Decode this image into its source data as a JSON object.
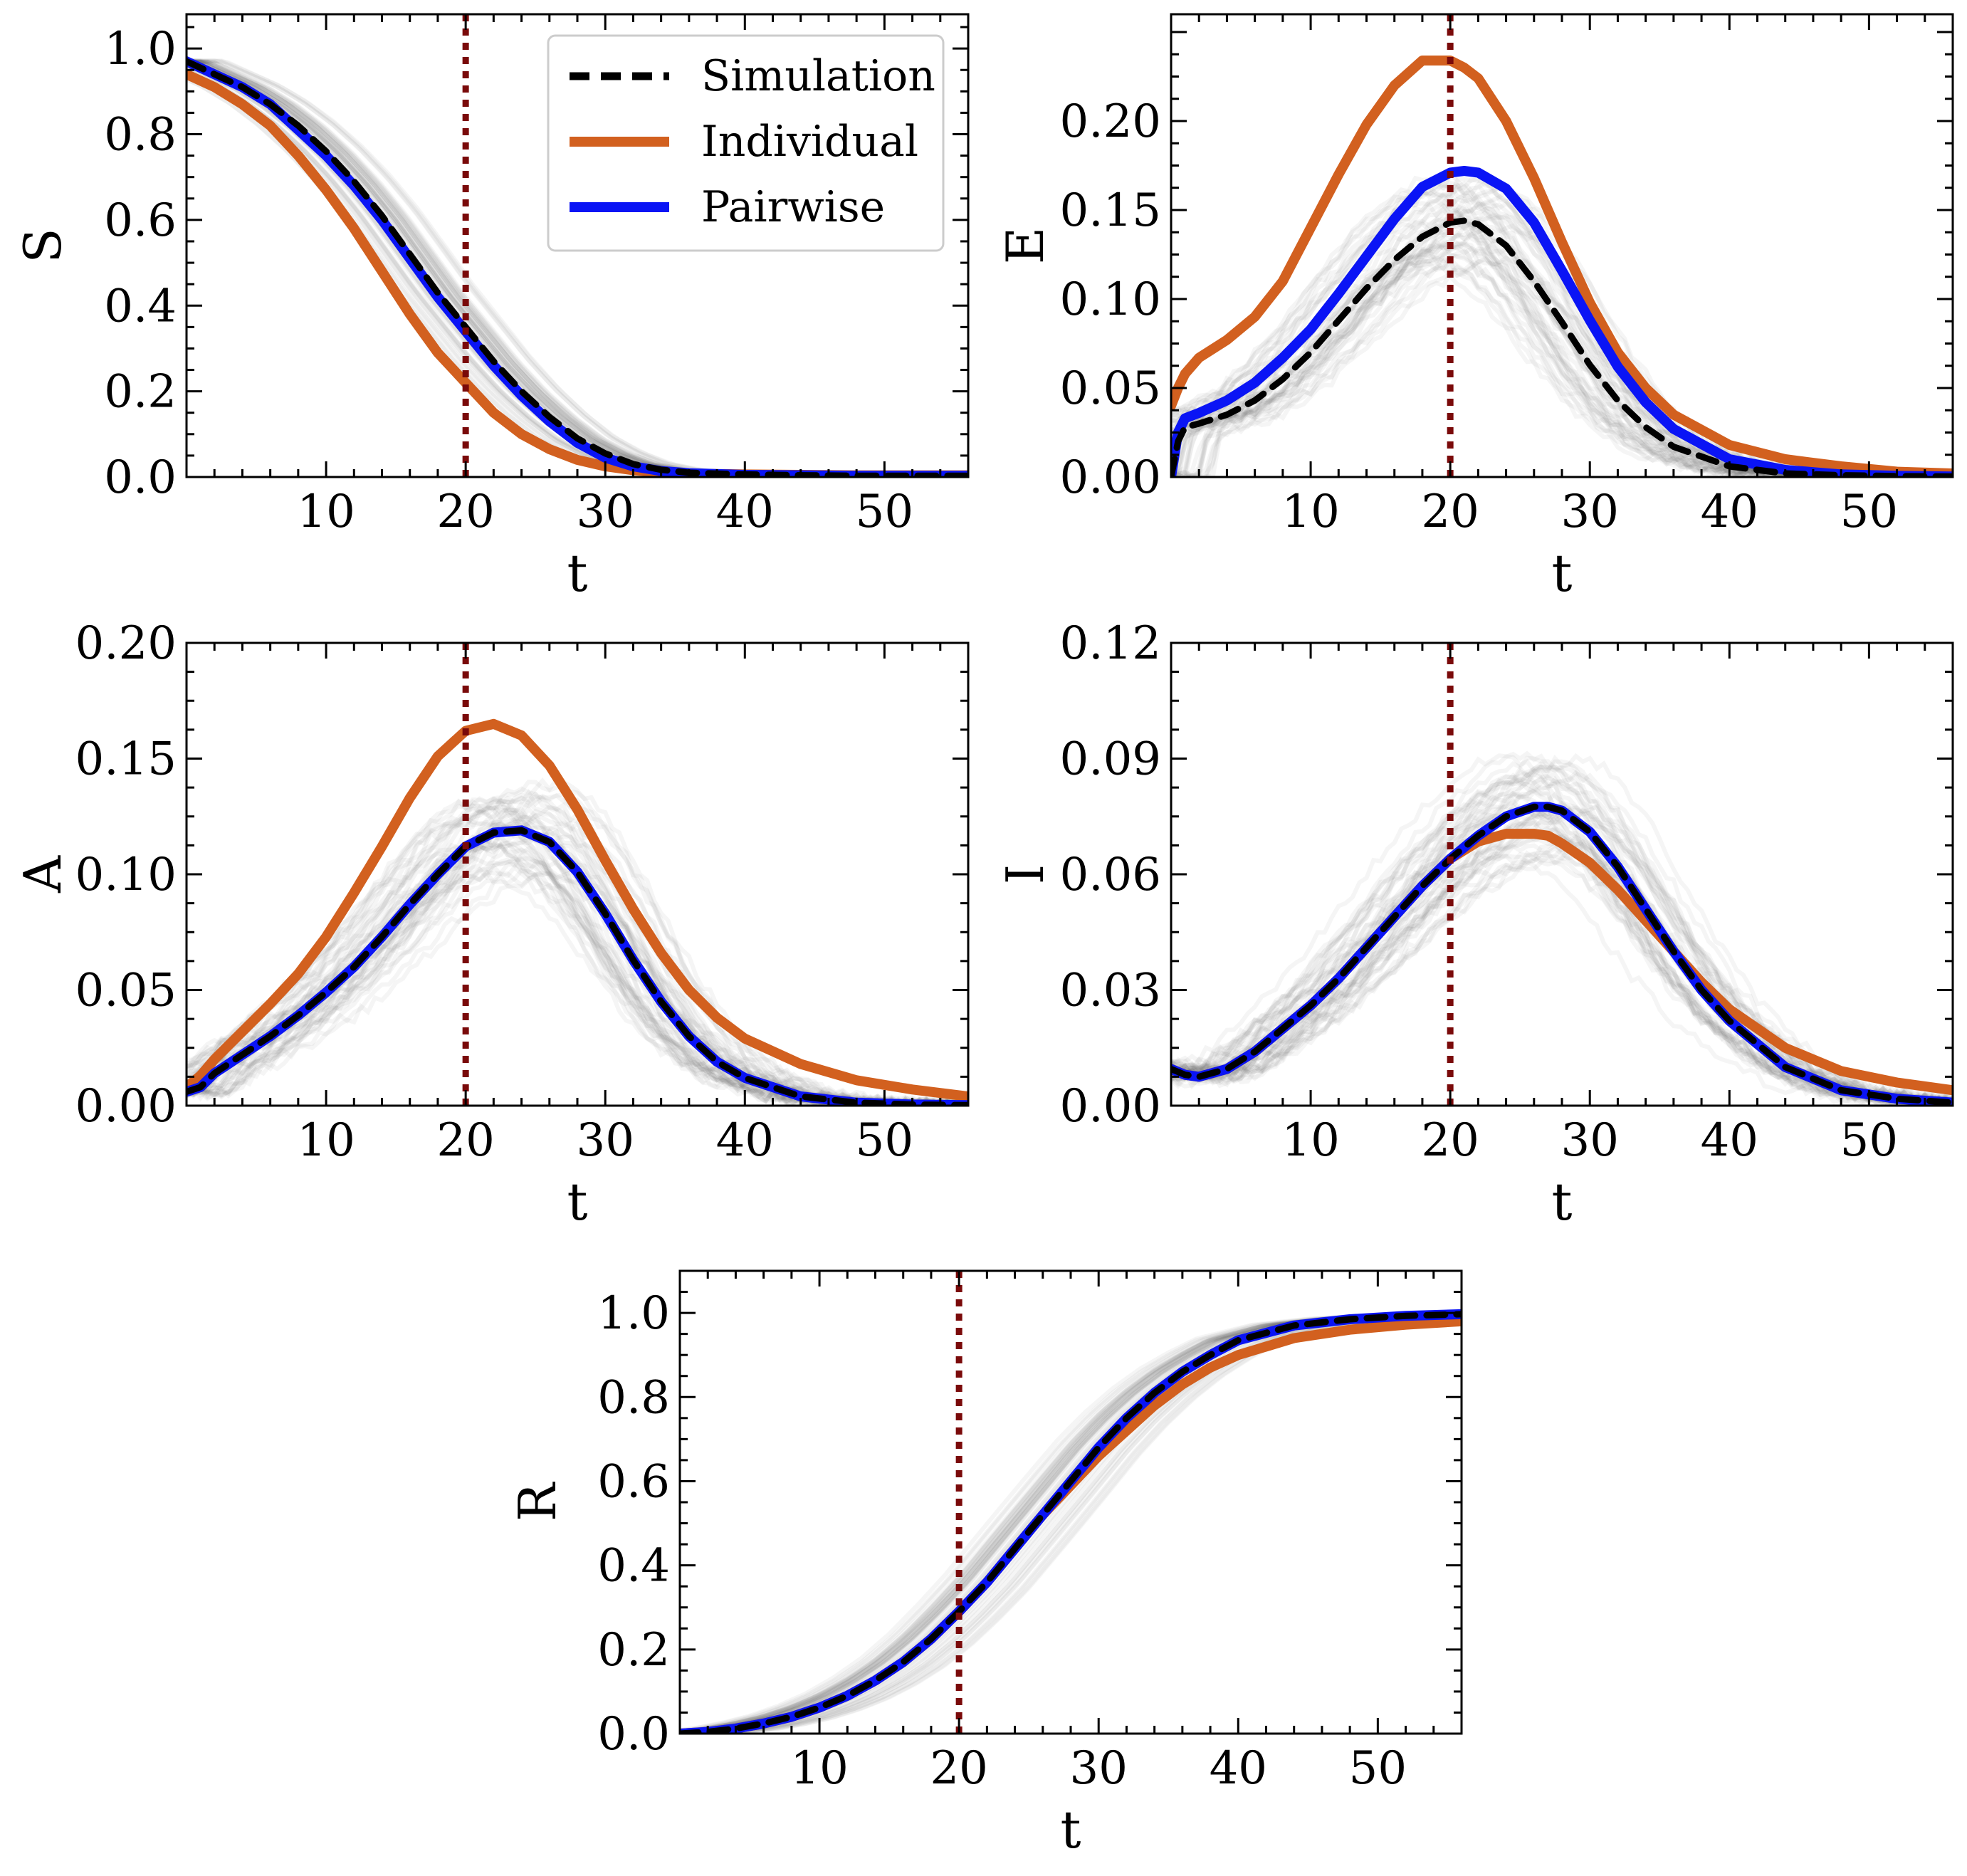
{
  "colors": {
    "simulation": "#000000",
    "individual": "#D2601F",
    "pairwise": "#0A14F5",
    "intervention": "#7A0A0A",
    "ensemble": "#555555"
  },
  "legend": {
    "simulation": "Simulation",
    "individual": "Individual",
    "pairwise": "Pairwise"
  },
  "chart_data": [
    {
      "id": "S",
      "type": "line",
      "ylabel": "S",
      "xlabel": "t",
      "xlim": [
        0,
        56
      ],
      "ylim": [
        0,
        1.08
      ],
      "xticks": [
        10,
        20,
        30,
        40,
        50
      ],
      "xtick_labels": [
        "10",
        "20",
        "30",
        "40",
        "50"
      ],
      "yticks": [
        0,
        0.2,
        0.4,
        0.6,
        0.8,
        1.0
      ],
      "ytick_labels": [
        "0.0",
        "0.2",
        "0.4",
        "0.6",
        "0.8",
        "1.0"
      ],
      "intervention_t": 20,
      "x": [
        0,
        2,
        4,
        6,
        8,
        10,
        12,
        14,
        16,
        18,
        20,
        22,
        24,
        26,
        28,
        30,
        32,
        34,
        36,
        40,
        44,
        48,
        52,
        56
      ],
      "series": [
        {
          "name": "Simulation",
          "values": [
            0.97,
            0.94,
            0.91,
            0.87,
            0.82,
            0.76,
            0.69,
            0.61,
            0.52,
            0.43,
            0.35,
            0.27,
            0.2,
            0.14,
            0.09,
            0.055,
            0.03,
            0.017,
            0.01,
            0.006,
            0.004,
            0.003,
            0.003,
            0.003
          ]
        },
        {
          "name": "Individual",
          "values": [
            0.94,
            0.91,
            0.87,
            0.82,
            0.75,
            0.67,
            0.58,
            0.48,
            0.38,
            0.29,
            0.22,
            0.15,
            0.1,
            0.065,
            0.04,
            0.025,
            0.016,
            0.011,
            0.008,
            0.006,
            0.005,
            0.004,
            0.004,
            0.004
          ]
        },
        {
          "name": "Pairwise",
          "values": [
            0.97,
            0.94,
            0.91,
            0.87,
            0.81,
            0.75,
            0.68,
            0.6,
            0.51,
            0.42,
            0.34,
            0.26,
            0.19,
            0.13,
            0.08,
            0.045,
            0.025,
            0.014,
            0.009,
            0.005,
            0.004,
            0.003,
            0.003,
            0.003
          ]
        }
      ]
    },
    {
      "id": "E",
      "type": "line",
      "ylabel": "E",
      "xlabel": "t",
      "xlim": [
        0,
        56
      ],
      "ylim": [
        0,
        0.26
      ],
      "xticks": [
        10,
        20,
        30,
        40,
        50
      ],
      "xtick_labels": [
        "10",
        "20",
        "30",
        "40",
        "50"
      ],
      "yticks": [
        0,
        0.05,
        0.1,
        0.15,
        0.2
      ],
      "ytick_labels": [
        "0.00",
        "0.05",
        "0.10",
        "0.15",
        "0.20"
      ],
      "intervention_t": 20,
      "x": [
        0,
        0.5,
        1,
        2,
        4,
        6,
        8,
        10,
        12,
        14,
        16,
        18,
        20,
        21,
        22,
        24,
        26,
        28,
        30,
        32,
        34,
        36,
        40,
        44,
        48,
        52,
        56
      ],
      "series": [
        {
          "name": "Simulation",
          "values": [
            0.0,
            0.02,
            0.028,
            0.03,
            0.035,
            0.043,
            0.055,
            0.07,
            0.088,
            0.106,
            0.122,
            0.135,
            0.143,
            0.144,
            0.142,
            0.13,
            0.11,
            0.087,
            0.063,
            0.043,
            0.028,
            0.017,
            0.006,
            0.002,
            0.001,
            0.0005,
            0.0003
          ]
        },
        {
          "name": "Individual",
          "values": [
            0.04,
            0.05,
            0.058,
            0.067,
            0.077,
            0.09,
            0.11,
            0.14,
            0.17,
            0.198,
            0.22,
            0.234,
            0.234,
            0.23,
            0.224,
            0.2,
            0.168,
            0.132,
            0.098,
            0.07,
            0.05,
            0.035,
            0.018,
            0.01,
            0.006,
            0.003,
            0.002
          ]
        },
        {
          "name": "Pairwise",
          "values": [
            0.0,
            0.025,
            0.033,
            0.036,
            0.043,
            0.053,
            0.067,
            0.083,
            0.103,
            0.124,
            0.145,
            0.163,
            0.171,
            0.172,
            0.171,
            0.162,
            0.143,
            0.116,
            0.088,
            0.062,
            0.042,
            0.027,
            0.01,
            0.004,
            0.0015,
            0.0007,
            0.0003
          ]
        }
      ]
    },
    {
      "id": "A",
      "type": "line",
      "ylabel": "A",
      "xlabel": "t",
      "xlim": [
        0,
        56
      ],
      "ylim": [
        0,
        0.2
      ],
      "xticks": [
        10,
        20,
        30,
        40,
        50
      ],
      "xtick_labels": [
        "10",
        "20",
        "30",
        "40",
        "50"
      ],
      "yticks": [
        0,
        0.05,
        0.1,
        0.15,
        0.2
      ],
      "ytick_labels": [
        "0.00",
        "0.05",
        "0.10",
        "0.15",
        "0.20"
      ],
      "intervention_t": 20,
      "x": [
        0,
        1,
        2,
        4,
        6,
        8,
        10,
        12,
        14,
        16,
        18,
        20,
        22,
        24,
        26,
        28,
        30,
        32,
        34,
        36,
        38,
        40,
        44,
        48,
        52,
        56
      ],
      "series": [
        {
          "name": "Simulation",
          "values": [
            0.006,
            0.008,
            0.014,
            0.022,
            0.03,
            0.039,
            0.049,
            0.06,
            0.073,
            0.087,
            0.1,
            0.112,
            0.118,
            0.119,
            0.114,
            0.101,
            0.083,
            0.063,
            0.045,
            0.03,
            0.019,
            0.012,
            0.004,
            0.0013,
            0.0005,
            0.0002
          ]
        },
        {
          "name": "Individual",
          "values": [
            0.008,
            0.013,
            0.02,
            0.032,
            0.044,
            0.057,
            0.073,
            0.092,
            0.112,
            0.133,
            0.151,
            0.162,
            0.165,
            0.16,
            0.147,
            0.128,
            0.106,
            0.085,
            0.066,
            0.05,
            0.038,
            0.029,
            0.018,
            0.011,
            0.007,
            0.004
          ]
        },
        {
          "name": "Pairwise",
          "values": [
            0.006,
            0.008,
            0.014,
            0.022,
            0.03,
            0.039,
            0.049,
            0.06,
            0.073,
            0.087,
            0.1,
            0.112,
            0.118,
            0.119,
            0.114,
            0.101,
            0.083,
            0.063,
            0.045,
            0.03,
            0.019,
            0.012,
            0.004,
            0.0013,
            0.0005,
            0.0002
          ]
        }
      ]
    },
    {
      "id": "I",
      "type": "line",
      "ylabel": "I",
      "xlabel": "t",
      "xlim": [
        0,
        56
      ],
      "ylim": [
        0,
        0.12
      ],
      "xticks": [
        10,
        20,
        30,
        40,
        50
      ],
      "xtick_labels": [
        "10",
        "20",
        "30",
        "40",
        "50"
      ],
      "yticks": [
        0,
        0.03,
        0.06,
        0.09,
        0.12
      ],
      "ytick_labels": [
        "0.00",
        "0.03",
        "0.06",
        "0.09",
        "0.12"
      ],
      "intervention_t": 20,
      "x": [
        0,
        1,
        2,
        4,
        6,
        8,
        10,
        12,
        14,
        16,
        18,
        20,
        22,
        24,
        26,
        27,
        28,
        30,
        32,
        34,
        36,
        38,
        40,
        44,
        48,
        52,
        56
      ],
      "series": [
        {
          "name": "Simulation",
          "values": [
            0.0095,
            0.008,
            0.0075,
            0.0095,
            0.014,
            0.02,
            0.026,
            0.033,
            0.041,
            0.049,
            0.057,
            0.064,
            0.07,
            0.075,
            0.0775,
            0.0775,
            0.0765,
            0.071,
            0.062,
            0.051,
            0.04,
            0.03,
            0.022,
            0.01,
            0.004,
            0.0018,
            0.0008
          ]
        },
        {
          "name": "Individual",
          "values": [
            0.0095,
            0.008,
            0.0075,
            0.0095,
            0.014,
            0.02,
            0.026,
            0.033,
            0.041,
            0.049,
            0.057,
            0.064,
            0.0685,
            0.0705,
            0.0705,
            0.07,
            0.068,
            0.063,
            0.056,
            0.048,
            0.04,
            0.032,
            0.025,
            0.015,
            0.009,
            0.006,
            0.004
          ]
        },
        {
          "name": "Pairwise",
          "values": [
            0.0095,
            0.008,
            0.0075,
            0.0095,
            0.014,
            0.02,
            0.026,
            0.033,
            0.041,
            0.049,
            0.057,
            0.064,
            0.07,
            0.075,
            0.0775,
            0.0775,
            0.0765,
            0.071,
            0.062,
            0.051,
            0.04,
            0.03,
            0.022,
            0.01,
            0.004,
            0.0018,
            0.0008
          ]
        }
      ]
    },
    {
      "id": "R",
      "type": "line",
      "ylabel": "R",
      "xlabel": "t",
      "xlim": [
        0,
        56
      ],
      "ylim": [
        0,
        1.1
      ],
      "xticks": [
        10,
        20,
        30,
        40,
        50
      ],
      "xtick_labels": [
        "10",
        "20",
        "30",
        "40",
        "50"
      ],
      "yticks": [
        0,
        0.2,
        0.4,
        0.6,
        0.8,
        1.0
      ],
      "ytick_labels": [
        "0.0",
        "0.2",
        "0.4",
        "0.6",
        "0.8",
        "1.0"
      ],
      "intervention_t": 20,
      "x": [
        0,
        2,
        4,
        6,
        8,
        10,
        12,
        14,
        16,
        18,
        20,
        22,
        24,
        26,
        28,
        30,
        32,
        34,
        36,
        38,
        40,
        44,
        48,
        52,
        56
      ],
      "series": [
        {
          "name": "Simulation",
          "values": [
            0.0,
            0.004,
            0.012,
            0.024,
            0.04,
            0.062,
            0.09,
            0.126,
            0.17,
            0.225,
            0.29,
            0.36,
            0.44,
            0.52,
            0.6,
            0.68,
            0.75,
            0.81,
            0.86,
            0.9,
            0.935,
            0.97,
            0.985,
            0.993,
            0.997
          ]
        },
        {
          "name": "Individual",
          "values": [
            0.0,
            0.004,
            0.012,
            0.024,
            0.04,
            0.062,
            0.09,
            0.126,
            0.17,
            0.225,
            0.29,
            0.36,
            0.44,
            0.52,
            0.59,
            0.66,
            0.72,
            0.78,
            0.83,
            0.87,
            0.9,
            0.94,
            0.96,
            0.972,
            0.98
          ]
        },
        {
          "name": "Pairwise",
          "values": [
            0.0,
            0.004,
            0.012,
            0.024,
            0.04,
            0.062,
            0.09,
            0.126,
            0.17,
            0.225,
            0.29,
            0.36,
            0.44,
            0.52,
            0.6,
            0.68,
            0.75,
            0.81,
            0.86,
            0.9,
            0.935,
            0.97,
            0.985,
            0.993,
            0.997
          ]
        }
      ]
    }
  ]
}
